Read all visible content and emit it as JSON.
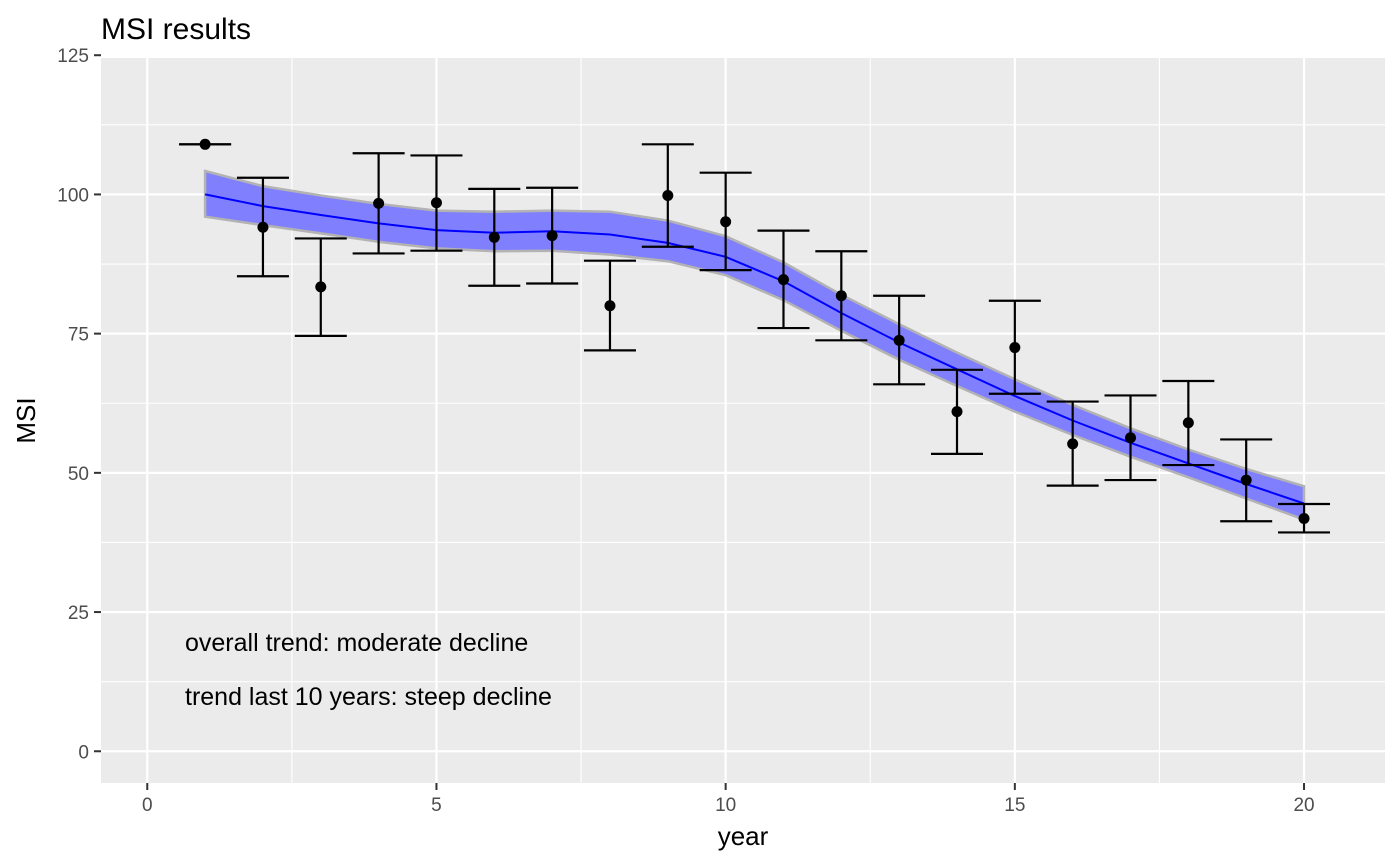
{
  "chart_data": {
    "type": "line",
    "title": "MSI results",
    "xlabel": "year",
    "ylabel": "MSI",
    "xlim": [
      -0.8,
      21.4
    ],
    "ylim": [
      -5.7,
      124.5
    ],
    "x_ticks": [
      0,
      5,
      10,
      15,
      20
    ],
    "y_ticks": [
      0,
      25,
      50,
      75,
      100,
      125
    ],
    "grid": true,
    "background": "#ebebeb",
    "trend_line": {
      "color": "#0000ff",
      "x": [
        1,
        2,
        3,
        4,
        5,
        6,
        7,
        8,
        9,
        10,
        11,
        12,
        13,
        14,
        15,
        16,
        17,
        18,
        19,
        20
      ],
      "y": [
        100,
        97.9,
        96.3,
        94.8,
        93.6,
        93.1,
        93.4,
        92.8,
        91.3,
        88.8,
        84.4,
        78.7,
        73.4,
        68.6,
        63.8,
        59.4,
        55.4,
        51.7,
        48.0,
        44.5
      ],
      "band_lower": [
        96.0,
        94.5,
        93.0,
        91.5,
        90.3,
        89.8,
        89.9,
        89.2,
        88.0,
        85.5,
        81.0,
        75.5,
        70.3,
        65.6,
        61.0,
        56.8,
        52.9,
        49.2,
        45.4,
        41.6
      ],
      "band_upper": [
        104.2,
        101.5,
        99.8,
        98.3,
        97.1,
        96.9,
        97.1,
        96.9,
        95.3,
        92.5,
        87.8,
        82.0,
        76.7,
        71.6,
        66.8,
        62.2,
        58.0,
        54.2,
        50.7,
        47.6
      ],
      "band_color": "#8080ff"
    },
    "points": {
      "x": [
        1,
        2,
        3,
        4,
        5,
        6,
        7,
        8,
        9,
        10,
        11,
        12,
        13,
        14,
        15,
        16,
        17,
        18,
        19,
        20
      ],
      "y": [
        109,
        94.1,
        83.4,
        98.4,
        98.5,
        92.3,
        92.6,
        80.0,
        99.8,
        95.1,
        84.7,
        81.8,
        73.8,
        61.0,
        72.5,
        55.2,
        56.3,
        59.0,
        48.7,
        41.8
      ],
      "lower": [
        109,
        85.3,
        74.6,
        89.4,
        89.9,
        83.6,
        84.0,
        72.0,
        90.6,
        86.4,
        76.0,
        73.8,
        65.9,
        53.4,
        64.2,
        47.7,
        48.7,
        51.4,
        41.3,
        39.3
      ],
      "upper": [
        109,
        103.0,
        92.1,
        107.4,
        107.0,
        101.0,
        101.2,
        88.1,
        109.0,
        103.9,
        93.5,
        89.8,
        81.8,
        68.5,
        80.9,
        62.8,
        63.9,
        66.5,
        56.0,
        44.4
      ]
    },
    "annotations": [
      "overall trend: moderate decline",
      "trend last 10 years: steep decline"
    ]
  }
}
